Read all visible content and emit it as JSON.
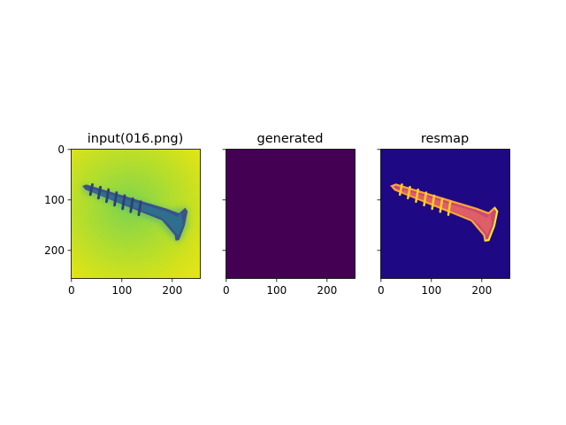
{
  "chart_data": [
    {
      "type": "heatmap",
      "title": "input(016.png)",
      "colormap": "viridis",
      "xlim": [
        0,
        256
      ],
      "ylim": [
        256,
        0
      ],
      "x_ticks": [
        0,
        100,
        200
      ],
      "y_ticks": [
        0,
        100,
        200
      ],
      "y_tick_labels_shown": true,
      "content": "bright yellow-green background with a dark blue screw lying diagonally"
    },
    {
      "type": "heatmap",
      "title": "generated",
      "colormap": "viridis",
      "uniform_color": "#440154",
      "xlim": [
        0,
        256
      ],
      "ylim": [
        256,
        0
      ],
      "x_ticks": [
        0,
        100,
        200
      ],
      "y_ticks": [
        0,
        100,
        200
      ],
      "y_tick_labels_shown": false
    },
    {
      "type": "heatmap",
      "title": "resmap",
      "colormap": "plasma",
      "xlim": [
        0,
        256
      ],
      "ylim": [
        256,
        0
      ],
      "x_ticks": [
        0,
        100,
        200
      ],
      "y_ticks": [
        0,
        100,
        200
      ],
      "y_tick_labels_shown": false,
      "content": "dark blue background with a bright orange-yellow screw outline"
    }
  ]
}
